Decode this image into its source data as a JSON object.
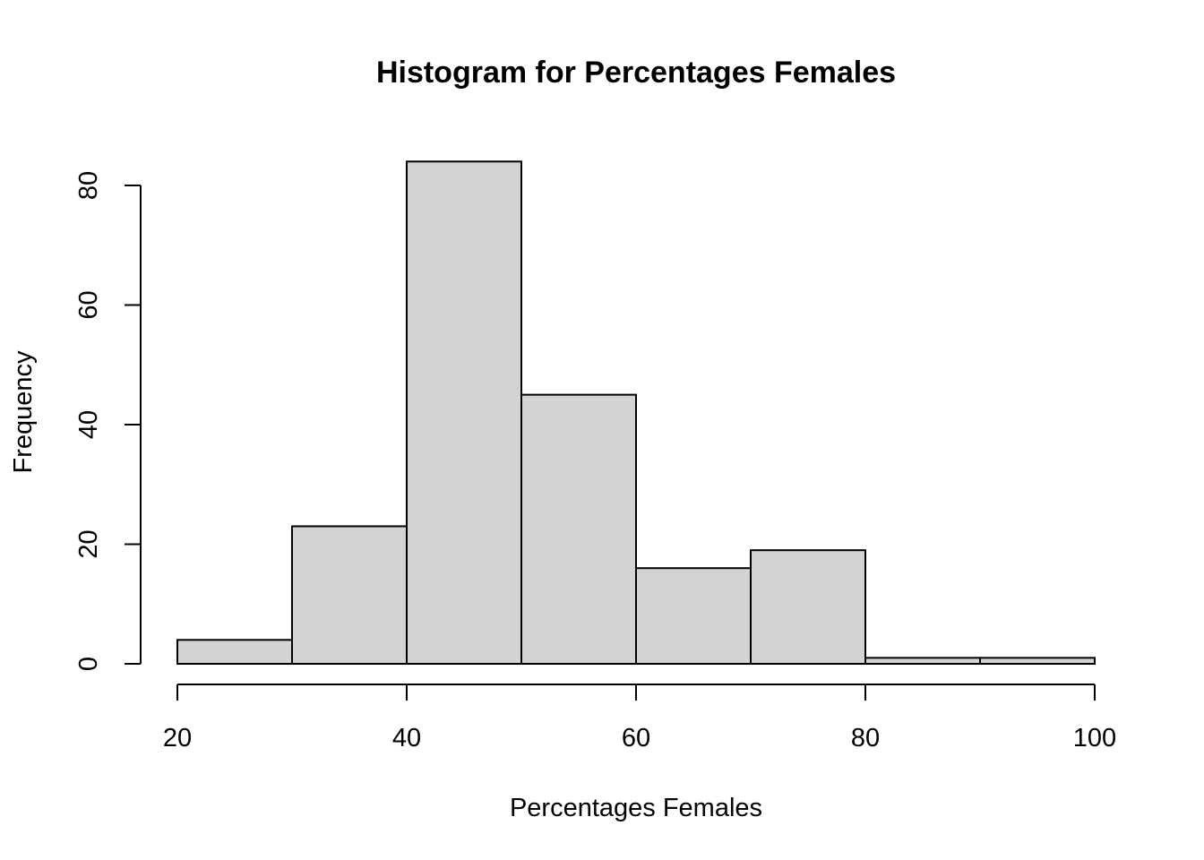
{
  "chart_data": {
    "type": "bar",
    "title": "Histogram for Percentages Females",
    "xlabel": "Percentages Females",
    "ylabel": "Frequency",
    "bins": [
      {
        "start": 20,
        "end": 30,
        "count": 4
      },
      {
        "start": 30,
        "end": 40,
        "count": 23
      },
      {
        "start": 40,
        "end": 50,
        "count": 84
      },
      {
        "start": 50,
        "end": 60,
        "count": 45
      },
      {
        "start": 60,
        "end": 70,
        "count": 16
      },
      {
        "start": 70,
        "end": 80,
        "count": 19
      },
      {
        "start": 80,
        "end": 90,
        "count": 1
      },
      {
        "start": 90,
        "end": 100,
        "count": 1
      }
    ],
    "xlim": [
      20,
      100
    ],
    "ylim": [
      0,
      80
    ],
    "xticks": [
      "20",
      "40",
      "60",
      "80",
      "100"
    ],
    "yticks": [
      "0",
      "20",
      "40",
      "60",
      "80"
    ],
    "bar_color": "#d3d3d3",
    "edge_color": "#000000",
    "grid": false
  }
}
